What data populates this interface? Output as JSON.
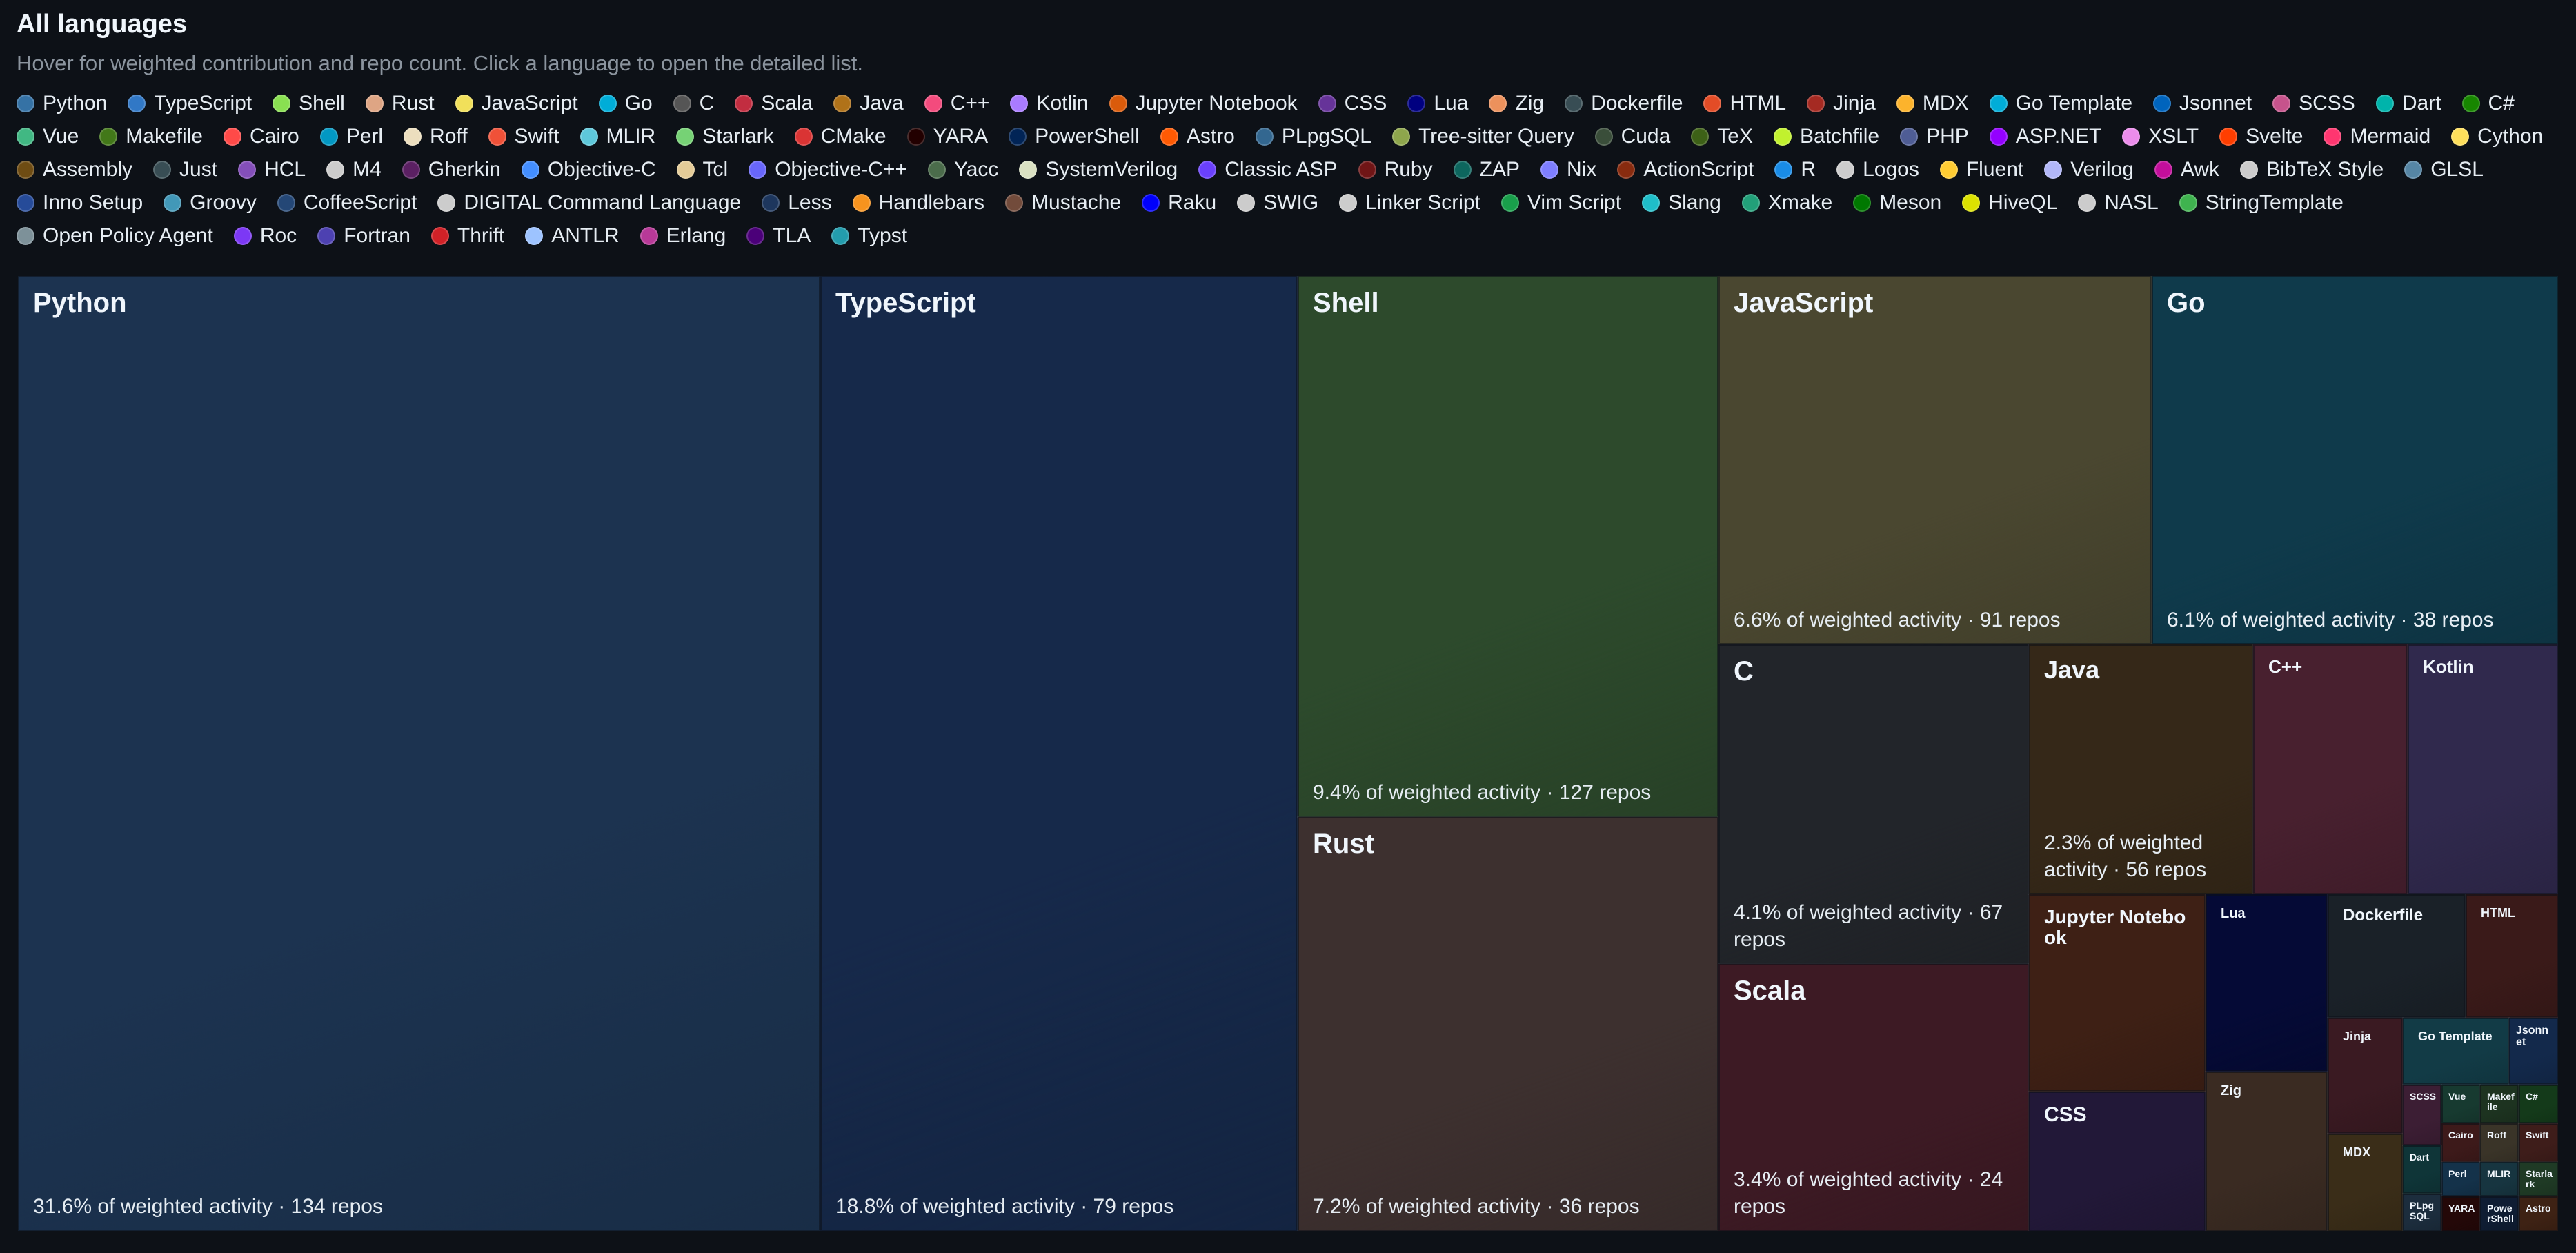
{
  "header": {
    "title": "All languages",
    "subtitle": "Hover for weighted contribution and repo count. Click a language to open the detailed list."
  },
  "chart_data": {
    "type": "treemap",
    "title": "All languages",
    "metric": "weighted activity",
    "tiles": [
      {
        "name": "Python",
        "share": 31.6,
        "repos": 134,
        "color": "#1c3350",
        "stat": "31.6% of weighted activity · 134 repos"
      },
      {
        "name": "TypeScript",
        "share": 18.8,
        "repos": 79,
        "color": "#16294a",
        "stat": "18.8% of weighted activity · 79 repos"
      },
      {
        "name": "Shell",
        "share": 9.4,
        "repos": 127,
        "color": "#2d4a2c",
        "stat": "9.4% of weighted activity · 127 repos"
      },
      {
        "name": "Rust",
        "share": 7.2,
        "repos": 36,
        "color": "#3d302f",
        "stat": "7.2% of weighted activity · 36 repos"
      },
      {
        "name": "JavaScript",
        "share": 6.6,
        "repos": 91,
        "color": "#4a4730",
        "stat": "6.6% of weighted activity · 91 repos"
      },
      {
        "name": "Go",
        "share": 6.1,
        "repos": 38,
        "color": "#0f3a4b",
        "stat": "6.1% of weighted activity · 38 repos"
      },
      {
        "name": "C",
        "share": 4.1,
        "repos": 67,
        "color": "#22252a",
        "stat": "4.1% of weighted activity · 67 repos"
      },
      {
        "name": "Scala",
        "share": 3.4,
        "repos": 24,
        "color": "#3d1a24",
        "stat": "3.4% of weighted activity · 24 repos"
      },
      {
        "name": "Java",
        "share": 2.3,
        "repos": 56,
        "color": "#352818",
        "stat": "2.3% of weighted activity · 56 repos"
      },
      {
        "name": "C++",
        "color": "#48202f"
      },
      {
        "name": "Kotlin",
        "color": "#30294d"
      },
      {
        "name": "Jupyter Notebook",
        "color": "#3e2015"
      },
      {
        "name": "CSS",
        "color": "#221838"
      },
      {
        "name": "Lua",
        "color": "#050a36"
      },
      {
        "name": "Zig",
        "color": "#3a2b22"
      },
      {
        "name": "Dockerfile",
        "color": "#1a2128"
      },
      {
        "name": "HTML",
        "color": "#3a1a19"
      },
      {
        "name": "Jinja",
        "color": "#3a1a22"
      },
      {
        "name": "MDX",
        "color": "#3a2d18"
      },
      {
        "name": "Go Template",
        "color": "#123b46"
      },
      {
        "name": "Jsonnet",
        "color": "#13294b"
      },
      {
        "name": "SCSS",
        "color": "#3c1e34"
      },
      {
        "name": "Vue",
        "color": "#173a30"
      },
      {
        "name": "Makefile",
        "color": "#1d3320"
      },
      {
        "name": "Cairo",
        "color": "#3d1a1a"
      },
      {
        "name": "Perl",
        "color": "#14324a"
      },
      {
        "name": "Roff",
        "color": "#3a3428"
      },
      {
        "name": "Swift",
        "color": "#3e1d1a"
      },
      {
        "name": "Dart",
        "color": "#0f3538"
      },
      {
        "name": "MLIR",
        "color": "#173540"
      },
      {
        "name": "Starlark",
        "color": "#1f3a25"
      },
      {
        "name": "C#",
        "color": "#143a1a"
      },
      {
        "name": "YARA",
        "color": "#240808"
      },
      {
        "name": "PowerShell",
        "color": "#0f1d33"
      },
      {
        "name": "Astro",
        "color": "#3e2214"
      },
      {
        "name": "PLpgSQL",
        "color": "#1c2d3d"
      }
    ]
  },
  "legend": [
    {
      "label": "Python",
      "color": "#3572a5"
    },
    {
      "label": "TypeScript",
      "color": "#3178c6"
    },
    {
      "label": "Shell",
      "color": "#89e051"
    },
    {
      "label": "Rust",
      "color": "#dea584"
    },
    {
      "label": "JavaScript",
      "color": "#f1e05a"
    },
    {
      "label": "Go",
      "color": "#00add8"
    },
    {
      "label": "C",
      "color": "#555555"
    },
    {
      "label": "Scala",
      "color": "#c22d40"
    },
    {
      "label": "Java",
      "color": "#b07219"
    },
    {
      "label": "C++",
      "color": "#f34b7d"
    },
    {
      "label": "Kotlin",
      "color": "#a97bff"
    },
    {
      "label": "Jupyter Notebook",
      "color": "#da5b0b"
    },
    {
      "label": "CSS",
      "color": "#663399"
    },
    {
      "label": "Lua",
      "color": "#000080"
    },
    {
      "label": "Zig",
      "color": "#ec915c"
    },
    {
      "label": "Dockerfile",
      "color": "#384d54"
    },
    {
      "label": "HTML",
      "color": "#e34c26"
    },
    {
      "label": "Jinja",
      "color": "#a52a22"
    },
    {
      "label": "MDX",
      "color": "#fcb32c"
    },
    {
      "label": "Go Template",
      "color": "#00add8"
    },
    {
      "label": "Jsonnet",
      "color": "#0064bd"
    },
    {
      "label": "SCSS",
      "color": "#c6538c"
    },
    {
      "label": "Dart",
      "color": "#00b4ab"
    },
    {
      "label": "C#",
      "color": "#178600"
    },
    {
      "label": "Vue",
      "color": "#41b883"
    },
    {
      "label": "Makefile",
      "color": "#427819"
    },
    {
      "label": "Cairo",
      "color": "#ff4a48"
    },
    {
      "label": "Perl",
      "color": "#0298c3"
    },
    {
      "label": "Roff",
      "color": "#ecdebe"
    },
    {
      "label": "Swift",
      "color": "#f05138"
    },
    {
      "label": "MLIR",
      "color": "#5ec8db"
    },
    {
      "label": "Starlark",
      "color": "#76d275"
    },
    {
      "label": "CMake",
      "color": "#da3434"
    },
    {
      "label": "YARA",
      "color": "#220000"
    },
    {
      "label": "PowerShell",
      "color": "#012456"
    },
    {
      "label": "Astro",
      "color": "#ff5a03"
    },
    {
      "label": "PLpgSQL",
      "color": "#336790"
    },
    {
      "label": "Tree-sitter Query",
      "color": "#8ea64c"
    },
    {
      "label": "Cuda",
      "color": "#3a4e3a"
    },
    {
      "label": "TeX",
      "color": "#3d6117"
    },
    {
      "label": "Batchfile",
      "color": "#c1f12e"
    },
    {
      "label": "PHP",
      "color": "#4f5d95"
    },
    {
      "label": "ASP.NET",
      "color": "#9400ff"
    },
    {
      "label": "XSLT",
      "color": "#eb8ceb"
    },
    {
      "label": "Svelte",
      "color": "#ff3e00"
    },
    {
      "label": "Mermaid",
      "color": "#ff3670"
    },
    {
      "label": "Cython",
      "color": "#fedf5b"
    },
    {
      "label": "Assembly",
      "color": "#6e4c13"
    },
    {
      "label": "Just",
      "color": "#384d54"
    },
    {
      "label": "HCL",
      "color": "#844fba"
    },
    {
      "label": "M4",
      "color": "#cccccc"
    },
    {
      "label": "Gherkin",
      "color": "#5b2063"
    },
    {
      "label": "Objective-C",
      "color": "#438eff"
    },
    {
      "label": "Tcl",
      "color": "#e4cc98"
    },
    {
      "label": "Objective-C++",
      "color": "#6866fb"
    },
    {
      "label": "Yacc",
      "color": "#4b6c4b"
    },
    {
      "label": "SystemVerilog",
      "color": "#dae1c2"
    },
    {
      "label": "Classic ASP",
      "color": "#6a40fd"
    },
    {
      "label": "Ruby",
      "color": "#701516"
    },
    {
      "label": "ZAP",
      "color": "#0d665e"
    },
    {
      "label": "Nix",
      "color": "#7e7eff"
    },
    {
      "label": "ActionScript",
      "color": "#882b0f"
    },
    {
      "label": "R",
      "color": "#198ce7"
    },
    {
      "label": "Logos",
      "color": "#cccccc"
    },
    {
      "label": "Fluent",
      "color": "#ffcc33"
    },
    {
      "label": "Verilog",
      "color": "#b2b7f8"
    },
    {
      "label": "Awk",
      "color": "#c30e9b"
    },
    {
      "label": "BibTeX Style",
      "color": "#cccccc"
    },
    {
      "label": "GLSL",
      "color": "#5686a5"
    },
    {
      "label": "Inno Setup",
      "color": "#264b99"
    },
    {
      "label": "Groovy",
      "color": "#4298b8"
    },
    {
      "label": "CoffeeScript",
      "color": "#244776"
    },
    {
      "label": "DIGITAL Command Language",
      "color": "#cccccc"
    },
    {
      "label": "Less",
      "color": "#1d365d"
    },
    {
      "label": "Handlebars",
      "color": "#f7931e"
    },
    {
      "label": "Mustache",
      "color": "#724b3b"
    },
    {
      "label": "Raku",
      "color": "#0000fb"
    },
    {
      "label": "SWIG",
      "color": "#cccccc"
    },
    {
      "label": "Linker Script",
      "color": "#cccccc"
    },
    {
      "label": "Vim Script",
      "color": "#199f4b"
    },
    {
      "label": "Slang",
      "color": "#1fbec9"
    },
    {
      "label": "Xmake",
      "color": "#22a079"
    },
    {
      "label": "Meson",
      "color": "#007800"
    },
    {
      "label": "HiveQL",
      "color": "#dce200"
    },
    {
      "label": "NASL",
      "color": "#cccccc"
    },
    {
      "label": "StringTemplate",
      "color": "#3fb34f"
    },
    {
      "label": "Open Policy Agent",
      "color": "#7d9199"
    },
    {
      "label": "Roc",
      "color": "#7c38f5"
    },
    {
      "label": "Fortran",
      "color": "#4d41b1"
    },
    {
      "label": "Thrift",
      "color": "#d12127"
    },
    {
      "label": "ANTLR",
      "color": "#9dc3ff"
    },
    {
      "label": "Erlang",
      "color": "#b83998"
    },
    {
      "label": "TLA",
      "color": "#4b0079"
    },
    {
      "label": "Typst",
      "color": "#239dad"
    }
  ]
}
